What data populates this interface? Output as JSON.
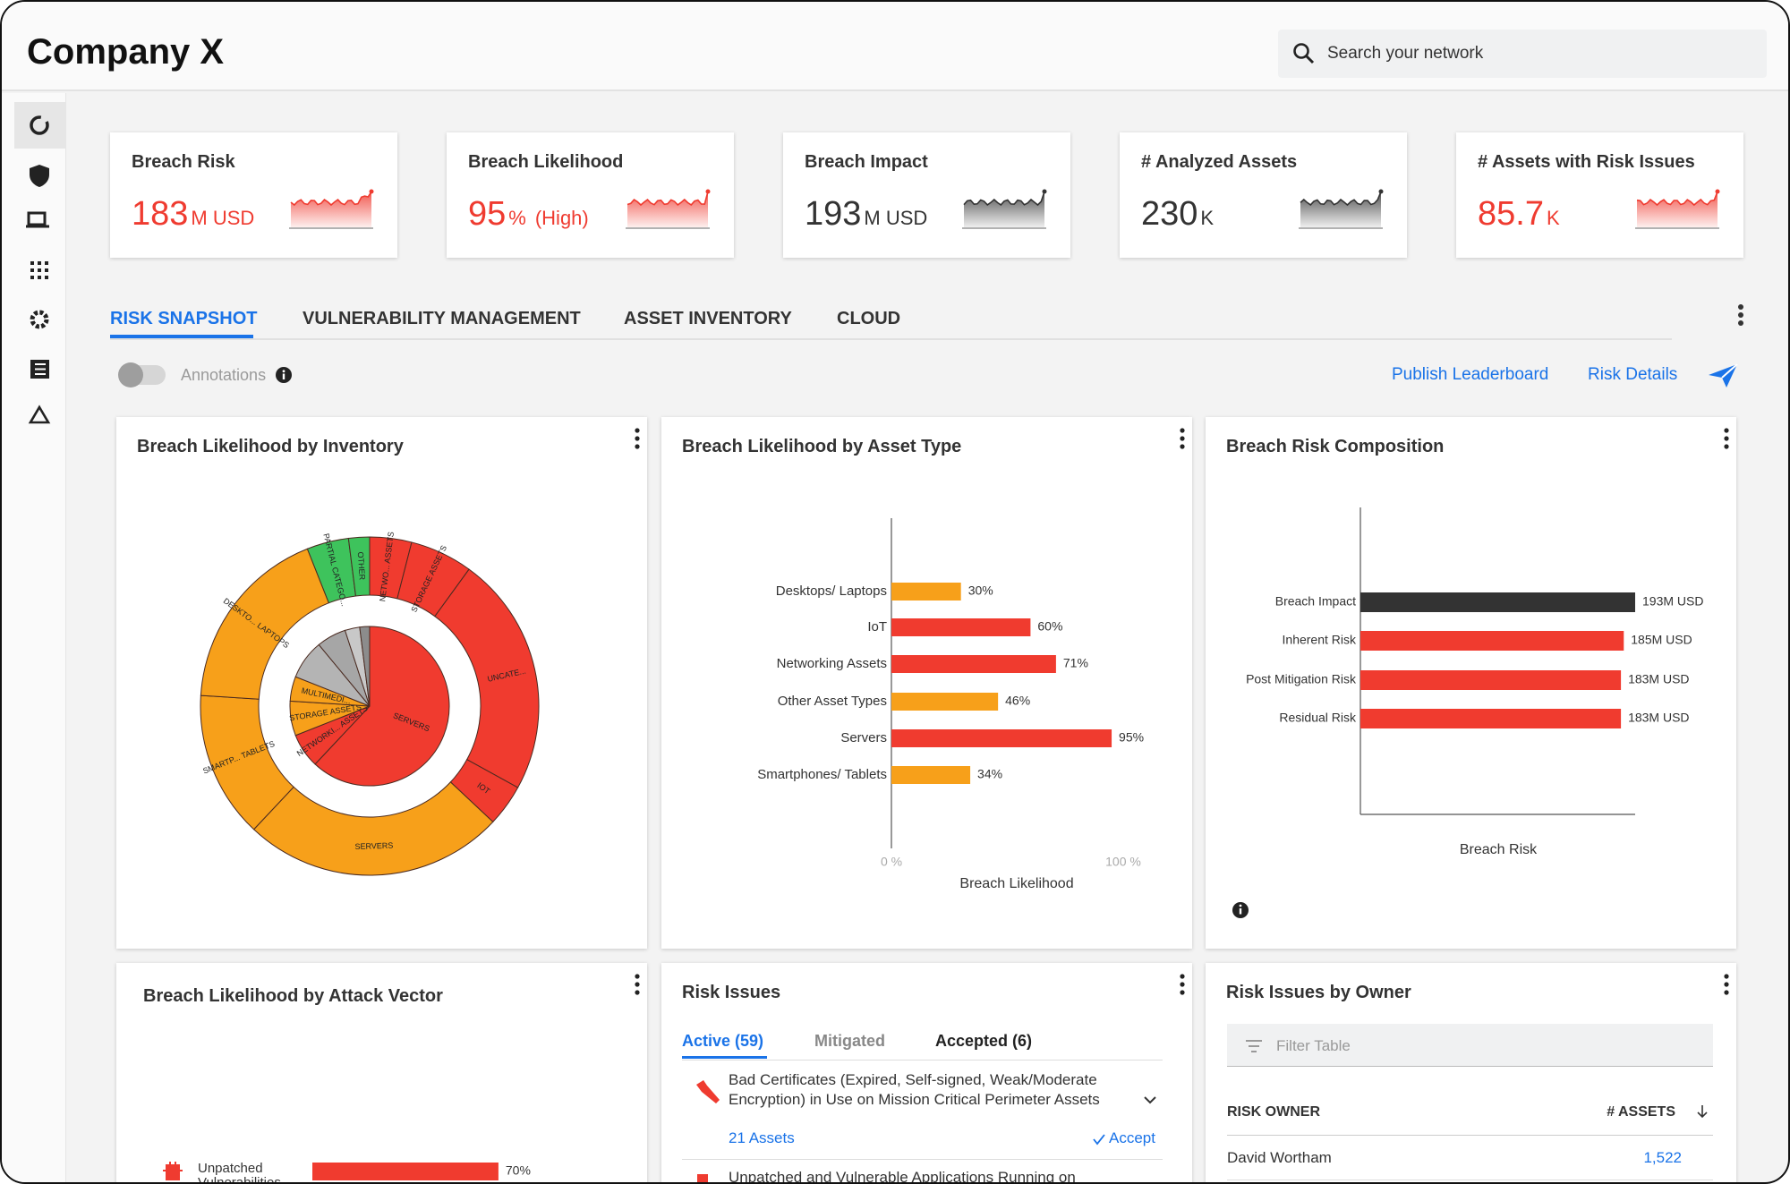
{
  "header": {
    "title": "Company X",
    "search_placeholder": "Search your network"
  },
  "kpis": [
    {
      "title": "Breach Risk",
      "value": 183,
      "unit": "M USD",
      "color": "#ef3b30"
    },
    {
      "title": "Breach Likelihood",
      "value": 95,
      "unit": "%",
      "note": "(High)",
      "color": "#ef3b30"
    },
    {
      "title": "Breach Impact",
      "value": 193,
      "unit": "M USD",
      "color": "#333333"
    },
    {
      "title": "# Analyzed Assets",
      "value": 230,
      "unit": "K",
      "color": "#333333"
    },
    {
      "title": "# Assets with Risk Issues",
      "value": 85.7,
      "unit": "K",
      "color": "#ef3b30"
    }
  ],
  "tabs": [
    "RISK SNAPSHOT",
    "VULNERABILITY MANAGEMENT",
    "ASSET INVENTORY",
    "CLOUD"
  ],
  "toolbar": {
    "toggle_label": "Annotations",
    "links": [
      "Publish Leaderboard",
      "Risk Details"
    ]
  },
  "widgets": {
    "inventory": {
      "title": "Breach Likelihood by Inventory",
      "type": "donut",
      "outer": {
        "labels": [
          "NETWO... ASSETS",
          "STORAGE ASSETS",
          "UNCATE...",
          "IOT",
          "SERVERS",
          "SMARTP... TABLETS",
          "DESKTO... LAPTOPS",
          "PARTIAL CATEGO...",
          "OTHER"
        ],
        "values": [
          4,
          6,
          23,
          4,
          25,
          14,
          18,
          4,
          2
        ],
        "colors": [
          "#f03b2f",
          "#f03b2f",
          "#f03b2f",
          "#f03b2f",
          "#f7a01a",
          "#f7a01a",
          "#f7a01a",
          "#3ec35c",
          "#3ec35c"
        ]
      },
      "inner": {
        "labels": [
          "SERVERS",
          "NETWORKI... ASSETS",
          "STORAGE ASSETS",
          "MULTIMEDI...",
          null,
          null,
          null,
          null
        ],
        "values": [
          62,
          7,
          7,
          5,
          8,
          6,
          3,
          2
        ],
        "colors": [
          "#f03b2f",
          "#f03b2f",
          "#f7a01a",
          "#f7a01a",
          "#b4b4b4",
          "#a6a6a6",
          "#c8c8c8",
          "#8c8c8c"
        ]
      }
    },
    "asset_type": {
      "title": "Breach Likelihood by Asset Type",
      "type": "bar",
      "categories": [
        "Desktops/ Laptops",
        "IoT",
        "Networking Assets",
        "Other Asset Types",
        "Servers",
        "Smartphones/ Tablets"
      ],
      "values": [
        30,
        60,
        71,
        46,
        95,
        34
      ],
      "value_labels": [
        "30%",
        "60%",
        "71%",
        "46%",
        "95%",
        "34%"
      ],
      "colors": [
        "#f7a01a",
        "#f03b2f",
        "#f03b2f",
        "#f7a01a",
        "#f03b2f",
        "#f7a01a"
      ],
      "xlim": [
        0,
        100
      ],
      "xticks": [
        {
          "value": 0,
          "label": "0 %"
        },
        {
          "value": 100,
          "label": "100 %"
        }
      ],
      "xlabel": "Breach Likelihood"
    },
    "composition": {
      "title": "Breach Risk Composition",
      "type": "bar",
      "categories": [
        "Breach Impact",
        "Inherent Risk",
        "Post Mitigation Risk",
        "Residual Risk"
      ],
      "values": [
        193,
        185,
        183,
        183
      ],
      "value_labels": [
        "193M USD",
        "185M USD",
        "183M USD",
        "183M USD"
      ],
      "colors": [
        "#333333",
        "#f03b2f",
        "#f03b2f",
        "#f03b2f"
      ],
      "xlim": [
        0,
        193
      ],
      "xlabel": "Breach Risk"
    },
    "attack_vector": {
      "title": "Breach Likelihood by Attack Vector",
      "type": "bar",
      "categories": [
        "Unpatched Vulnerabilities"
      ],
      "values": [
        70
      ],
      "value_labels": [
        "70%"
      ],
      "colors": [
        "#f03b2f"
      ],
      "xlim": [
        0,
        100
      ]
    },
    "risk_issues": {
      "title": "Risk Issues",
      "tabs": [
        "Active (59)",
        "Mitigated",
        "Accepted (6)"
      ],
      "items": [
        {
          "text": "Bad Certificates (Expired, Self-signed, Weak/Moderate Encryption) in Use on Mission Critical Perimeter Assets",
          "assets": "21 Assets",
          "action": "Accept"
        },
        {
          "text": "Unpatched and Vulnerable Applications Running on"
        }
      ]
    },
    "owners": {
      "title": "Risk Issues by Owner",
      "filter_placeholder": "Filter Table",
      "columns": [
        "RISK OWNER",
        "# ASSETS"
      ],
      "rows": [
        [
          "David Wortham",
          "1,522"
        ]
      ]
    }
  }
}
